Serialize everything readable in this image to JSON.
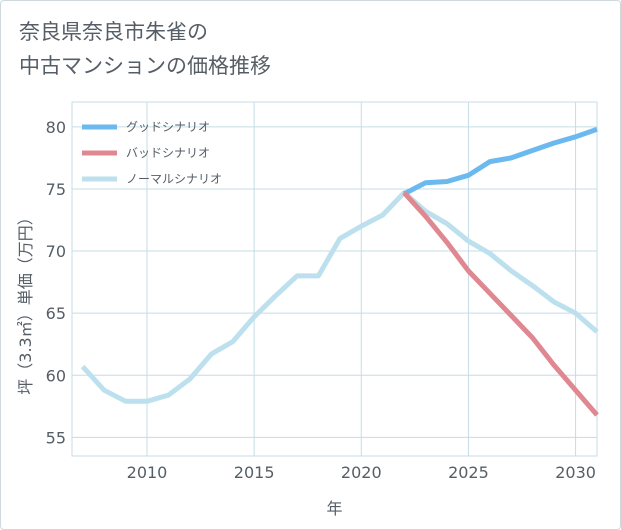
{
  "title_lines": [
    "奈良県奈良市朱雀の",
    "中古マンションの価格推移"
  ],
  "colors": {
    "good": "#6bb9ef",
    "bad": "#e08891",
    "normal": "#bde0ee",
    "grid": "#c5dce6",
    "text": "#555e66"
  },
  "chart_data": {
    "type": "line",
    "xlabel": "年",
    "ylabel": "坪（3.3㎡）単価（万円）",
    "xlim": [
      2006.5,
      2031
    ],
    "ylim": [
      53.5,
      82
    ],
    "xticks": [
      2010,
      2015,
      2020,
      2025,
      2030
    ],
    "yticks": [
      55,
      60,
      65,
      70,
      75,
      80
    ],
    "grid": true,
    "legend_position": "top-left",
    "series": [
      {
        "name": "グッドシナリオ",
        "color_key": "good",
        "x": [
          2022,
          2023,
          2024,
          2025,
          2026,
          2027,
          2028,
          2029,
          2030,
          2031
        ],
        "y": [
          74.6,
          75.5,
          75.6,
          76.1,
          77.2,
          77.5,
          78.1,
          78.7,
          79.2,
          79.8
        ]
      },
      {
        "name": "バッドシナリオ",
        "color_key": "bad",
        "x": [
          2022,
          2023,
          2024,
          2025,
          2026,
          2027,
          2028,
          2029,
          2030,
          2031
        ],
        "y": [
          74.7,
          72.8,
          70.7,
          68.4,
          66.6,
          64.8,
          63.0,
          60.8,
          58.8,
          56.8
        ]
      },
      {
        "name": "ノーマルシナリオ",
        "color_key": "normal",
        "x": [
          2007,
          2008,
          2009,
          2010,
          2011,
          2012,
          2013,
          2014,
          2015,
          2016,
          2017,
          2018,
          2019,
          2020,
          2021,
          2022,
          2023,
          2024,
          2025,
          2026,
          2027,
          2028,
          2029,
          2030,
          2031
        ],
        "y": [
          60.7,
          58.8,
          57.9,
          57.9,
          58.4,
          59.7,
          61.7,
          62.7,
          64.7,
          66.4,
          68.0,
          68.0,
          71.0,
          72.0,
          72.9,
          74.7,
          73.2,
          72.2,
          70.8,
          69.8,
          68.4,
          67.2,
          65.9,
          65.0,
          63.5
        ]
      }
    ]
  }
}
